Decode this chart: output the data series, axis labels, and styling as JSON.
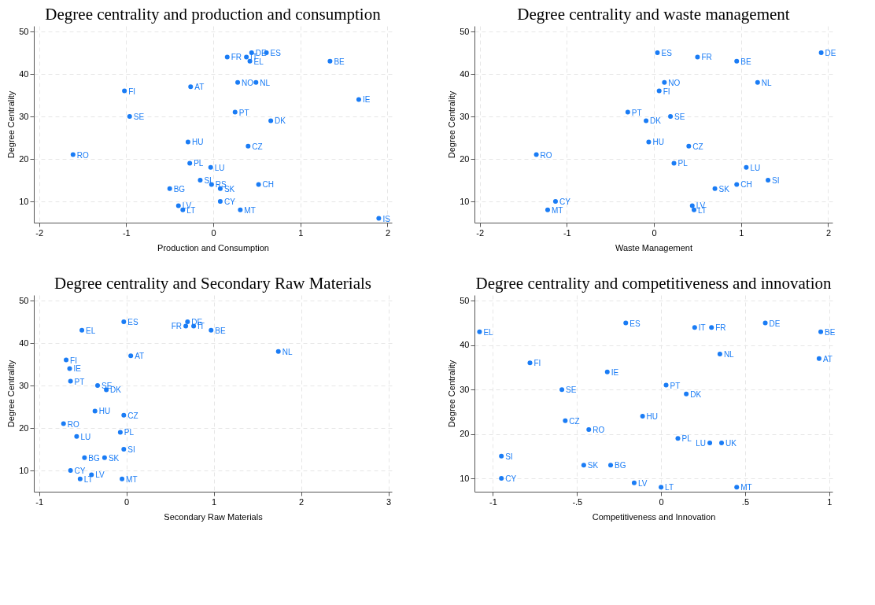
{
  "chart_data": [
    {
      "type": "scatter",
      "title": "Degree centrality and production and consumption",
      "xlabel": "Production and Consumption",
      "ylabel": "Degree Centrality",
      "xlim": [
        -2.06,
        2.05
      ],
      "ylim": [
        5,
        51.3
      ],
      "xticks": [
        -2,
        -1,
        0,
        1,
        2
      ],
      "yticks": [
        10,
        20,
        30,
        40,
        50
      ],
      "grid": true,
      "marker": "circle",
      "series": [
        {
          "color": "#1a7cf5",
          "x": [
            0.44,
            0.61,
            0.16,
            0.38,
            0.42,
            1.34,
            0.28,
            0.49,
            -0.26,
            -1.02,
            1.67,
            0.25,
            -0.96,
            0.66,
            -0.29,
            0.4,
            -1.61,
            -0.27,
            -0.03,
            -0.15,
            -0.02,
            0.52,
            -0.5,
            0.08,
            0.08,
            -0.4,
            -0.35,
            0.31,
            1.9
          ],
          "values": [
            45,
            45,
            44,
            44,
            43,
            43,
            38,
            38,
            37,
            36,
            34,
            31,
            30,
            29,
            24,
            23,
            21,
            19,
            18,
            15,
            14,
            14,
            13,
            13,
            10,
            9,
            8,
            8,
            6
          ]
        }
      ],
      "annotations": [
        {
          "text": "DE",
          "x": 0.44,
          "y": 45
        },
        {
          "text": "ES",
          "x": 0.61,
          "y": 45
        },
        {
          "text": "FR",
          "x": 0.16,
          "y": 44
        },
        {
          "text": "IT",
          "x": 0.38,
          "y": 44
        },
        {
          "text": "EL",
          "x": 0.42,
          "y": 43
        },
        {
          "text": "BE",
          "x": 1.34,
          "y": 43
        },
        {
          "text": "NO",
          "x": 0.28,
          "y": 38
        },
        {
          "text": "NL",
          "x": 0.49,
          "y": 38
        },
        {
          "text": "AT",
          "x": -0.26,
          "y": 37
        },
        {
          "text": "FI",
          "x": -1.02,
          "y": 36
        },
        {
          "text": "IE",
          "x": 1.67,
          "y": 34
        },
        {
          "text": "PT",
          "x": 0.25,
          "y": 31
        },
        {
          "text": "SE",
          "x": -0.96,
          "y": 30
        },
        {
          "text": "DK",
          "x": 0.66,
          "y": 29
        },
        {
          "text": "HU",
          "x": -0.29,
          "y": 24
        },
        {
          "text": "CZ",
          "x": 0.4,
          "y": 23
        },
        {
          "text": "RO",
          "x": -1.61,
          "y": 21
        },
        {
          "text": "PL",
          "x": -0.27,
          "y": 19
        },
        {
          "text": "LU",
          "x": -0.03,
          "y": 18
        },
        {
          "text": "SI",
          "x": -0.15,
          "y": 15
        },
        {
          "text": "RS",
          "x": -0.02,
          "y": 14
        },
        {
          "text": "CH",
          "x": 0.52,
          "y": 14
        },
        {
          "text": "BG",
          "x": -0.5,
          "y": 13
        },
        {
          "text": "SK",
          "x": 0.08,
          "y": 13
        },
        {
          "text": "CY",
          "x": 0.08,
          "y": 10
        },
        {
          "text": "LV",
          "x": -0.4,
          "y": 9
        },
        {
          "text": "LT",
          "x": -0.35,
          "y": 8
        },
        {
          "text": "MT",
          "x": 0.31,
          "y": 8
        },
        {
          "text": "IS",
          "x": 1.9,
          "y": 6
        }
      ]
    },
    {
      "type": "scatter",
      "title": "Degree centrality and waste management",
      "xlabel": "Waste Management",
      "ylabel": "Degree Centrality",
      "xlim": [
        -2.06,
        2.05
      ],
      "ylim": [
        5,
        51.3
      ],
      "xticks": [
        -2,
        -1,
        0,
        1,
        2
      ],
      "yticks": [
        10,
        20,
        30,
        40,
        50
      ],
      "grid": true,
      "marker": "circle",
      "series": [
        {
          "color": "#1a7cf5",
          "x": [
            0.04,
            0.5,
            0.95,
            1.92,
            0.12,
            1.19,
            0.06,
            -0.3,
            0.19,
            -0.09,
            -0.06,
            0.4,
            -1.35,
            0.23,
            1.06,
            1.31,
            0.95,
            0.7,
            -1.13,
            -1.22,
            0.44,
            0.46
          ],
          "values": [
            45,
            44,
            43,
            45,
            38,
            38,
            36,
            31,
            30,
            29,
            24,
            23,
            21,
            19,
            18,
            15,
            14,
            13,
            10,
            8,
            9,
            8
          ]
        }
      ],
      "annotations": [
        {
          "text": "ES",
          "x": 0.04,
          "y": 45
        },
        {
          "text": "FR",
          "x": 0.5,
          "y": 44
        },
        {
          "text": "BE",
          "x": 0.95,
          "y": 43
        },
        {
          "text": "DE",
          "x": 1.92,
          "y": 45
        },
        {
          "text": "NO",
          "x": 0.12,
          "y": 38
        },
        {
          "text": "NL",
          "x": 1.19,
          "y": 38
        },
        {
          "text": "FI",
          "x": 0.06,
          "y": 36
        },
        {
          "text": "PT",
          "x": -0.3,
          "y": 31
        },
        {
          "text": "SE",
          "x": 0.19,
          "y": 30
        },
        {
          "text": "DK",
          "x": -0.09,
          "y": 29
        },
        {
          "text": "HU",
          "x": -0.06,
          "y": 24
        },
        {
          "text": "CZ",
          "x": 0.4,
          "y": 23
        },
        {
          "text": "RO",
          "x": -1.35,
          "y": 21
        },
        {
          "text": "PL",
          "x": 0.23,
          "y": 19
        },
        {
          "text": "LU",
          "x": 1.06,
          "y": 18
        },
        {
          "text": "SI",
          "x": 1.31,
          "y": 15
        },
        {
          "text": "CH",
          "x": 0.95,
          "y": 14
        },
        {
          "text": "SK",
          "x": 0.7,
          "y": 13
        },
        {
          "text": "CY",
          "x": -1.13,
          "y": 10
        },
        {
          "text": "MT",
          "x": -1.22,
          "y": 8
        },
        {
          "text": "LV",
          "x": 0.44,
          "y": 9
        },
        {
          "text": "LT",
          "x": 0.46,
          "y": 8
        }
      ]
    },
    {
      "type": "scatter",
      "title": "Degree centrality and Secondary Raw Materials",
      "xlabel": "Secondary Raw Materials",
      "ylabel": "Degree Centrality",
      "xlim": [
        -1.06,
        3.04
      ],
      "ylim": [
        5,
        51.3
      ],
      "xticks": [
        -1,
        0,
        1,
        2,
        3
      ],
      "yticks": [
        10,
        20,
        30,
        40,
        50
      ],
      "grid": true,
      "marker": "circle",
      "series": [
        {
          "color": "#1a7cf5",
          "x": [
            -0.03,
            0.7,
            0.68,
            0.77,
            -0.51,
            0.97,
            1.74,
            0.05,
            -0.69,
            -0.65,
            -0.64,
            -0.33,
            -0.23,
            -0.36,
            -0.03,
            -0.72,
            -0.07,
            -0.57,
            -0.03,
            -0.48,
            -0.25,
            -0.64,
            -0.4,
            -0.53,
            -0.05
          ],
          "values": [
            45,
            45,
            44,
            44,
            43,
            43,
            38,
            37,
            36,
            34,
            31,
            30,
            29,
            24,
            23,
            21,
            19,
            18,
            15,
            13,
            13,
            10,
            9,
            8,
            8
          ]
        }
      ],
      "annotations": [
        {
          "text": "ES",
          "x": -0.03,
          "y": 45
        },
        {
          "text": "DE",
          "x": 0.7,
          "y": 45
        },
        {
          "text": "FR",
          "x": 0.68,
          "y": 44
        },
        {
          "text": "IT",
          "x": 0.77,
          "y": 44
        },
        {
          "text": "EL",
          "x": -0.51,
          "y": 43
        },
        {
          "text": "BE",
          "x": 0.97,
          "y": 43
        },
        {
          "text": "NL",
          "x": 1.74,
          "y": 38
        },
        {
          "text": "AT",
          "x": 0.05,
          "y": 37
        },
        {
          "text": "FI",
          "x": -0.69,
          "y": 36
        },
        {
          "text": "IE",
          "x": -0.65,
          "y": 34
        },
        {
          "text": "PT",
          "x": -0.64,
          "y": 31
        },
        {
          "text": "SE",
          "x": -0.33,
          "y": 30
        },
        {
          "text": "DK",
          "x": -0.23,
          "y": 29
        },
        {
          "text": "HU",
          "x": -0.36,
          "y": 24
        },
        {
          "text": "CZ",
          "x": -0.03,
          "y": 23
        },
        {
          "text": "RO",
          "x": -0.72,
          "y": 21
        },
        {
          "text": "PL",
          "x": -0.07,
          "y": 19
        },
        {
          "text": "LU",
          "x": -0.57,
          "y": 18
        },
        {
          "text": "SI",
          "x": -0.03,
          "y": 15
        },
        {
          "text": "BG",
          "x": -0.48,
          "y": 13
        },
        {
          "text": "SK",
          "x": -0.25,
          "y": 13
        },
        {
          "text": "CY",
          "x": -0.64,
          "y": 10
        },
        {
          "text": "LV",
          "x": -0.4,
          "y": 9
        },
        {
          "text": "LT",
          "x": -0.53,
          "y": 8
        },
        {
          "text": "MT",
          "x": -0.05,
          "y": 8
        }
      ]
    },
    {
      "type": "scatter",
      "title": "Degree centrality and competitiveness and innovation",
      "xlabel": "Competitiveness and Innovation",
      "ylabel": "Degree Centrality",
      "xlim": [
        -1.11,
        1.02
      ],
      "ylim": [
        7,
        51.3
      ],
      "xticks": [
        -1,
        {
          "value": -0.5,
          "label": "-.5"
        },
        0,
        {
          "value": 0.5,
          "label": ".5"
        },
        1
      ],
      "yticks": [
        10,
        20,
        30,
        40,
        50
      ],
      "grid": true,
      "marker": "circle",
      "series": [
        {
          "color": "#1a7cf5",
          "x": [
            -1.08,
            -0.21,
            0.2,
            0.3,
            0.62,
            0.95,
            0.35,
            0.94,
            -0.78,
            -0.32,
            -0.59,
            0.03,
            0.15,
            -0.11,
            -0.57,
            -0.43,
            0.1,
            0.29,
            0.36,
            -0.95,
            -0.46,
            -0.3,
            -0.95,
            -0.16,
            0.0,
            0.45
          ],
          "values": [
            43,
            45,
            44,
            44,
            45,
            43,
            38,
            37,
            36,
            34,
            30,
            31,
            29,
            24,
            23,
            21,
            19,
            18,
            18,
            15,
            13,
            13,
            10,
            9,
            8,
            8
          ]
        }
      ],
      "annotations": [
        {
          "text": "EL",
          "x": -1.08,
          "y": 43
        },
        {
          "text": "ES",
          "x": -0.21,
          "y": 45
        },
        {
          "text": "IT",
          "x": 0.2,
          "y": 44
        },
        {
          "text": "FR",
          "x": 0.3,
          "y": 44
        },
        {
          "text": "DE",
          "x": 0.62,
          "y": 45
        },
        {
          "text": "BE",
          "x": 0.95,
          "y": 43
        },
        {
          "text": "NL",
          "x": 0.35,
          "y": 38
        },
        {
          "text": "AT",
          "x": 0.94,
          "y": 37
        },
        {
          "text": "FI",
          "x": -0.78,
          "y": 36
        },
        {
          "text": "IE",
          "x": -0.32,
          "y": 34
        },
        {
          "text": "SE",
          "x": -0.59,
          "y": 30
        },
        {
          "text": "PT",
          "x": 0.03,
          "y": 31
        },
        {
          "text": "DK",
          "x": 0.15,
          "y": 29
        },
        {
          "text": "HU",
          "x": -0.11,
          "y": 24
        },
        {
          "text": "CZ",
          "x": -0.57,
          "y": 23
        },
        {
          "text": "RO",
          "x": -0.43,
          "y": 21
        },
        {
          "text": "PL",
          "x": 0.1,
          "y": 19
        },
        {
          "text": "LU",
          "x": 0.29,
          "y": 18
        },
        {
          "text": "UK",
          "x": 0.36,
          "y": 18
        },
        {
          "text": "SI",
          "x": -0.95,
          "y": 15
        },
        {
          "text": "SK",
          "x": -0.46,
          "y": 13
        },
        {
          "text": "BG",
          "x": -0.3,
          "y": 13
        },
        {
          "text": "CY",
          "x": -0.95,
          "y": 10
        },
        {
          "text": "LV",
          "x": -0.16,
          "y": 9
        },
        {
          "text": "LT",
          "x": 0.0,
          "y": 8
        },
        {
          "text": "MT",
          "x": 0.45,
          "y": 8
        }
      ]
    }
  ]
}
